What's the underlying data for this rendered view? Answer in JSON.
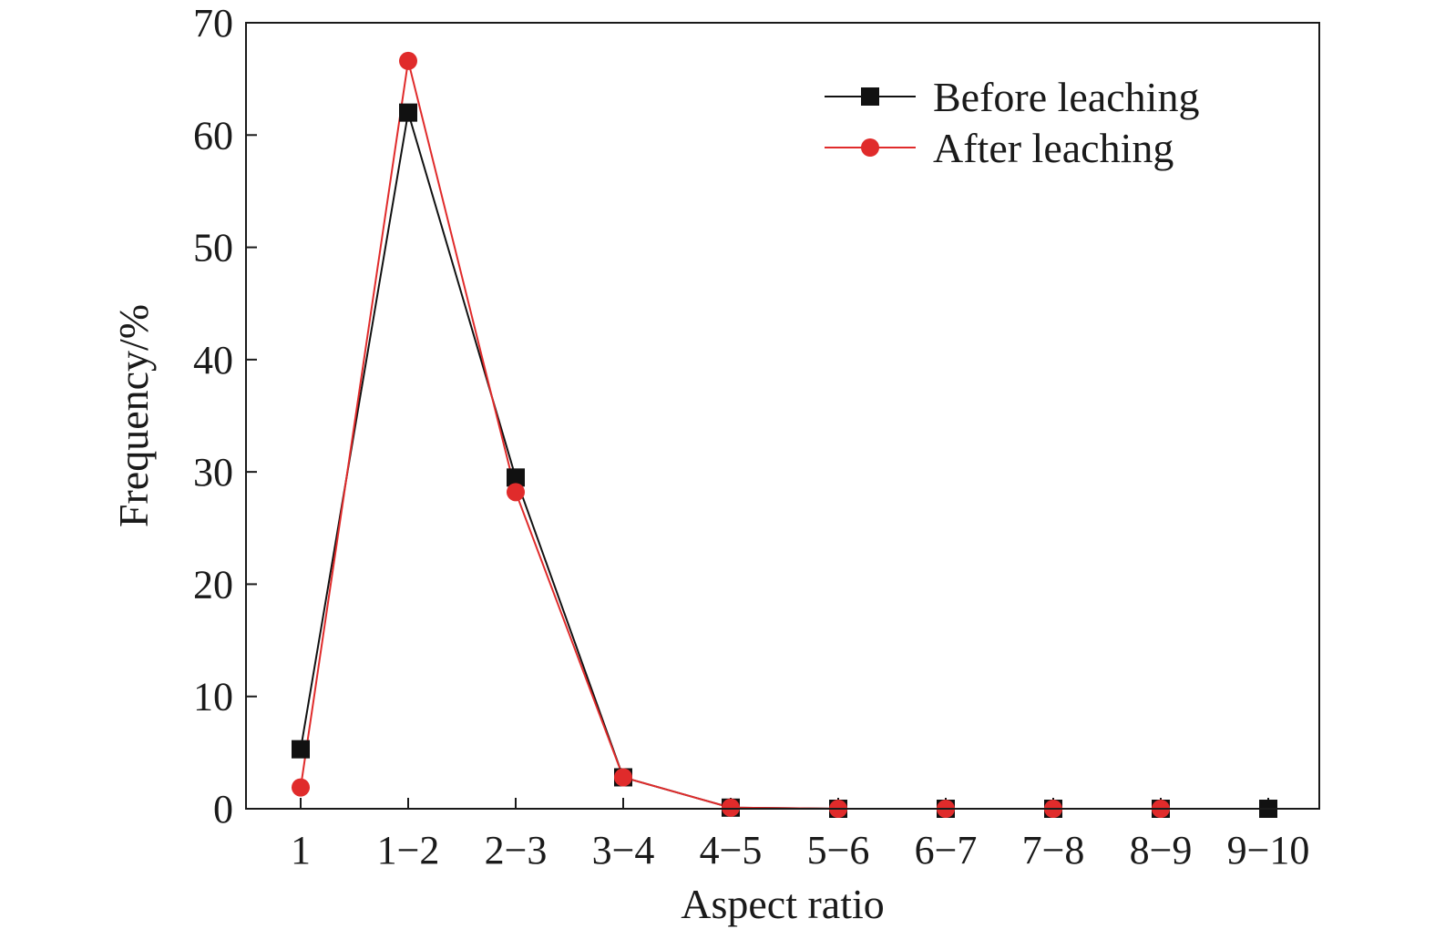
{
  "chart_data": {
    "type": "line",
    "xlabel": "Aspect ratio",
    "ylabel": "Frequency/%",
    "ylim": [
      0,
      70
    ],
    "yticks": [
      0,
      10,
      20,
      30,
      40,
      50,
      60,
      70
    ],
    "categories": [
      "1",
      "1−2",
      "2−3",
      "3−4",
      "4−5",
      "5−6",
      "6−7",
      "7−8",
      "8−9",
      "9−10"
    ],
    "grid": false,
    "legend_position": "top-right",
    "series": [
      {
        "name": "Before leaching",
        "color": "#111111",
        "marker": "square",
        "values": [
          5.3,
          62.0,
          29.5,
          2.8,
          0.1,
          0.0,
          0.0,
          0.0,
          0.0,
          0.0
        ]
      },
      {
        "name": "After leaching",
        "color": "#e02b2b",
        "marker": "circle",
        "values": [
          1.9,
          66.6,
          28.2,
          2.8,
          0.1,
          0.0,
          0.0,
          0.0,
          0.0,
          null
        ]
      }
    ]
  }
}
